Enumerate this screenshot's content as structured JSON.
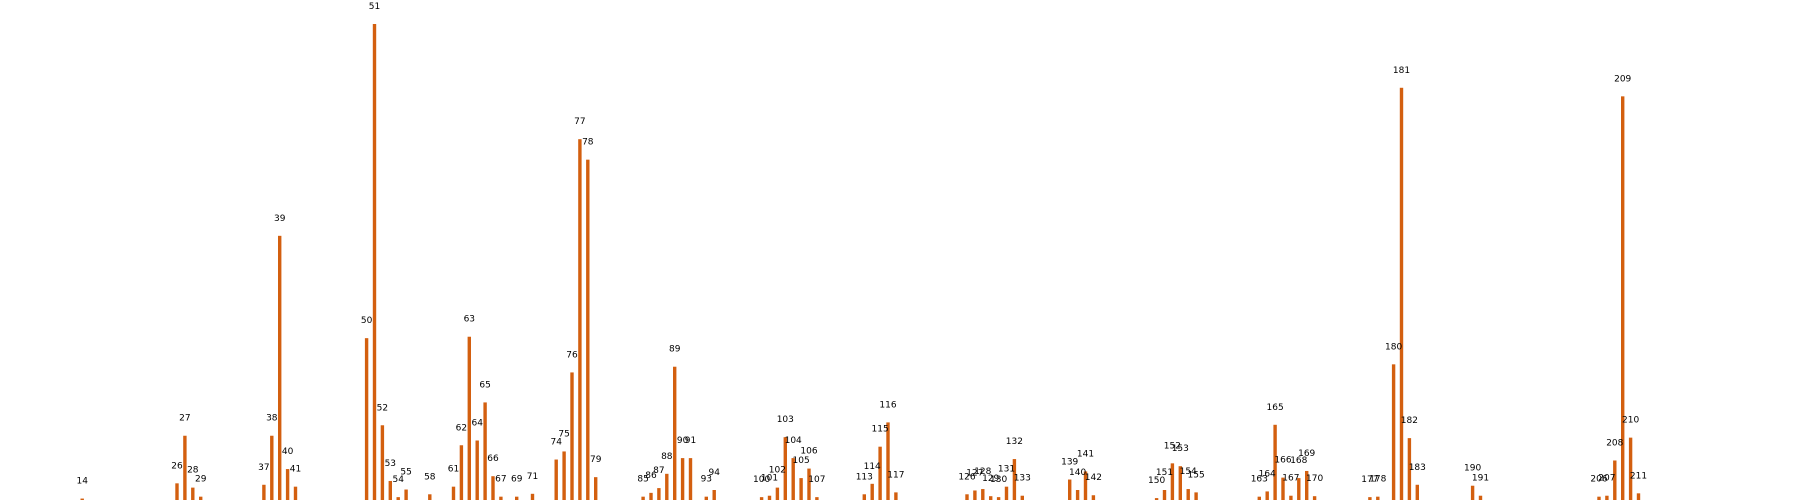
{
  "chart_data": {
    "type": "bar",
    "bar_color": "#d35f0f",
    "ylim": [
      0,
      1.0
    ],
    "grid": false,
    "axes_visible": false,
    "points": [
      {
        "x": 14,
        "y": 0.003
      },
      {
        "x": 26,
        "y": 0.035
      },
      {
        "x": 27,
        "y": 0.135
      },
      {
        "x": 28,
        "y": 0.026
      },
      {
        "x": 29,
        "y": 0.007
      },
      {
        "x": 37,
        "y": 0.032
      },
      {
        "x": 38,
        "y": 0.135
      },
      {
        "x": 39,
        "y": 0.555
      },
      {
        "x": 40,
        "y": 0.065
      },
      {
        "x": 41,
        "y": 0.028
      },
      {
        "x": 50,
        "y": 0.34
      },
      {
        "x": 51,
        "y": 1.0
      },
      {
        "x": 52,
        "y": 0.157
      },
      {
        "x": 53,
        "y": 0.04
      },
      {
        "x": 54,
        "y": 0.006
      },
      {
        "x": 55,
        "y": 0.022
      },
      {
        "x": 58,
        "y": 0.012
      },
      {
        "x": 61,
        "y": 0.028
      },
      {
        "x": 62,
        "y": 0.115
      },
      {
        "x": 63,
        "y": 0.343
      },
      {
        "x": 64,
        "y": 0.125
      },
      {
        "x": 65,
        "y": 0.205
      },
      {
        "x": 66,
        "y": 0.05
      },
      {
        "x": 67,
        "y": 0.007
      },
      {
        "x": 69,
        "y": 0.007
      },
      {
        "x": 71,
        "y": 0.013
      },
      {
        "x": 74,
        "y": 0.085
      },
      {
        "x": 75,
        "y": 0.102
      },
      {
        "x": 76,
        "y": 0.268
      },
      {
        "x": 77,
        "y": 0.758
      },
      {
        "x": 78,
        "y": 0.715
      },
      {
        "x": 79,
        "y": 0.048
      },
      {
        "x": 85,
        "y": 0.007
      },
      {
        "x": 86,
        "y": 0.015
      },
      {
        "x": 87,
        "y": 0.025
      },
      {
        "x": 88,
        "y": 0.055
      },
      {
        "x": 89,
        "y": 0.28
      },
      {
        "x": 90,
        "y": 0.088
      },
      {
        "x": 91,
        "y": 0.088
      },
      {
        "x": 93,
        "y": 0.007
      },
      {
        "x": 94,
        "y": 0.021
      },
      {
        "x": 100,
        "y": 0.006
      },
      {
        "x": 101,
        "y": 0.009
      },
      {
        "x": 102,
        "y": 0.026
      },
      {
        "x": 103,
        "y": 0.132
      },
      {
        "x": 104,
        "y": 0.088
      },
      {
        "x": 105,
        "y": 0.046
      },
      {
        "x": 106,
        "y": 0.066
      },
      {
        "x": 107,
        "y": 0.006
      },
      {
        "x": 113,
        "y": 0.012
      },
      {
        "x": 114,
        "y": 0.034
      },
      {
        "x": 115,
        "y": 0.112
      },
      {
        "x": 116,
        "y": 0.163
      },
      {
        "x": 117,
        "y": 0.016
      },
      {
        "x": 126,
        "y": 0.012
      },
      {
        "x": 127,
        "y": 0.02
      },
      {
        "x": 128,
        "y": 0.023
      },
      {
        "x": 129,
        "y": 0.008
      },
      {
        "x": 130,
        "y": 0.006
      },
      {
        "x": 131,
        "y": 0.028
      },
      {
        "x": 132,
        "y": 0.086
      },
      {
        "x": 133,
        "y": 0.009
      },
      {
        "x": 139,
        "y": 0.043
      },
      {
        "x": 140,
        "y": 0.021
      },
      {
        "x": 141,
        "y": 0.06
      },
      {
        "x": 142,
        "y": 0.01
      },
      {
        "x": 150,
        "y": 0.004
      },
      {
        "x": 151,
        "y": 0.021
      },
      {
        "x": 152,
        "y": 0.077
      },
      {
        "x": 153,
        "y": 0.071
      },
      {
        "x": 154,
        "y": 0.023
      },
      {
        "x": 155,
        "y": 0.016
      },
      {
        "x": 163,
        "y": 0.007
      },
      {
        "x": 164,
        "y": 0.018
      },
      {
        "x": 165,
        "y": 0.158
      },
      {
        "x": 166,
        "y": 0.047
      },
      {
        "x": 167,
        "y": 0.009
      },
      {
        "x": 168,
        "y": 0.046
      },
      {
        "x": 169,
        "y": 0.061
      },
      {
        "x": 170,
        "y": 0.008
      },
      {
        "x": 177,
        "y": 0.006
      },
      {
        "x": 178,
        "y": 0.007
      },
      {
        "x": 180,
        "y": 0.285
      },
      {
        "x": 181,
        "y": 0.866
      },
      {
        "x": 182,
        "y": 0.13
      },
      {
        "x": 183,
        "y": 0.032
      },
      {
        "x": 190,
        "y": 0.03
      },
      {
        "x": 191,
        "y": 0.009
      },
      {
        "x": 206,
        "y": 0.007
      },
      {
        "x": 207,
        "y": 0.009
      },
      {
        "x": 208,
        "y": 0.083
      },
      {
        "x": 209,
        "y": 0.848
      },
      {
        "x": 210,
        "y": 0.131
      },
      {
        "x": 211,
        "y": 0.014
      }
    ]
  }
}
